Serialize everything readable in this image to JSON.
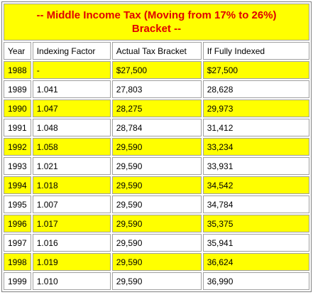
{
  "title": "-- Middle Income Tax (Moving from 17% to 26%) Bracket --",
  "table": {
    "header": [
      "Year",
      "Indexing Factor",
      "Actual Tax Bracket",
      "If Fully Indexed"
    ],
    "rows": [
      [
        "1988",
        "-",
        "$27,500",
        "$27,500"
      ],
      [
        "1989",
        "1.041",
        "27,803",
        "28,628"
      ],
      [
        "1990",
        "1.047",
        "28,275",
        "29,973"
      ],
      [
        "1991",
        "1.048",
        "28,784",
        "31,412"
      ],
      [
        "1992",
        "1.058",
        "29,590",
        "33,234"
      ],
      [
        "1993",
        "1.021",
        "29,590",
        "33,931"
      ],
      [
        "1994",
        "1.018",
        "29,590",
        "34,542"
      ],
      [
        "1995",
        "1.007",
        "29,590",
        "34,784"
      ],
      [
        "1996",
        "1.017",
        "29,590",
        "35,375"
      ],
      [
        "1997",
        "1.016",
        "29,590",
        "35,941"
      ],
      [
        "1998",
        "1.019",
        "29,590",
        "36,624"
      ],
      [
        "1999",
        "1.010",
        "29,590",
        "36,990"
      ]
    ]
  }
}
